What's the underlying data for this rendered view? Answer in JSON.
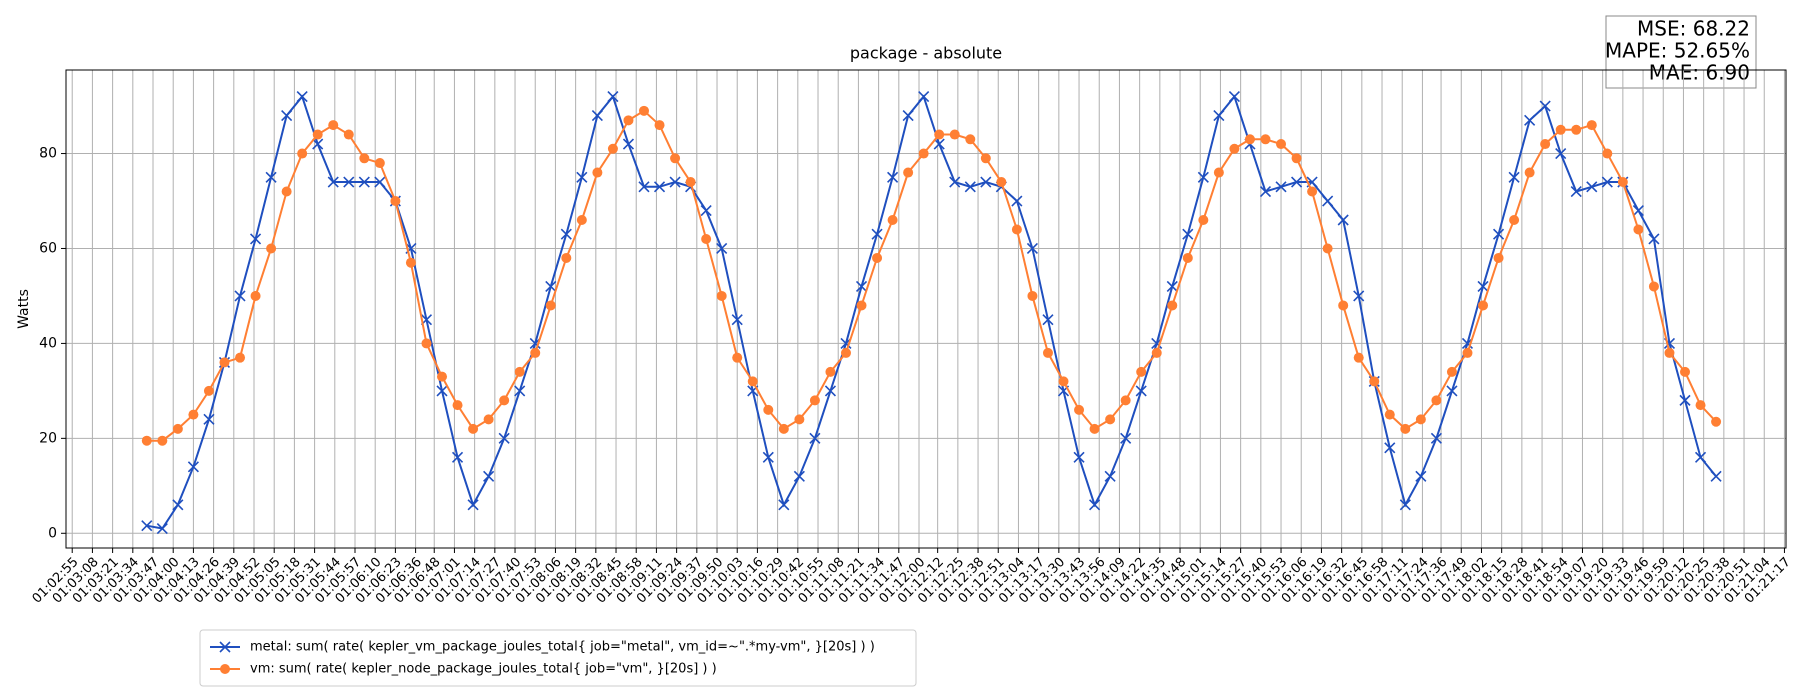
{
  "chart_data": {
    "type": "line",
    "title": "package - absolute",
    "ylabel": "Watts",
    "annotations": [
      "MSE: 68.22",
      "MAPE: 52.65%",
      "MAE: 6.90"
    ],
    "x": [
      "01:03:43",
      "01:03:53",
      "01:04:03",
      "01:04:13",
      "01:04:23",
      "01:04:33",
      "01:04:43",
      "01:04:53",
      "01:05:03",
      "01:05:13",
      "01:05:23",
      "01:05:33",
      "01:05:43",
      "01:05:53",
      "01:06:03",
      "01:06:13",
      "01:06:23",
      "01:06:33",
      "01:06:43",
      "01:06:53",
      "01:07:03",
      "01:07:13",
      "01:07:23",
      "01:07:33",
      "01:07:43",
      "01:07:53",
      "01:08:03",
      "01:08:13",
      "01:08:23",
      "01:08:33",
      "01:08:43",
      "01:08:53",
      "01:09:03",
      "01:09:13",
      "01:09:23",
      "01:09:33",
      "01:09:43",
      "01:09:53",
      "01:10:03",
      "01:10:13",
      "01:10:23",
      "01:10:33",
      "01:10:43",
      "01:10:53",
      "01:11:03",
      "01:11:13",
      "01:11:23",
      "01:11:33",
      "01:11:43",
      "01:11:53",
      "01:12:03",
      "01:12:13",
      "01:12:23",
      "01:12:33",
      "01:12:43",
      "01:12:53",
      "01:13:03",
      "01:13:13",
      "01:13:23",
      "01:13:33",
      "01:13:43",
      "01:13:53",
      "01:14:03",
      "01:14:13",
      "01:14:23",
      "01:14:33",
      "01:14:43",
      "01:14:53",
      "01:15:03",
      "01:15:13",
      "01:15:23",
      "01:15:33",
      "01:15:43",
      "01:15:53",
      "01:16:03",
      "01:16:13",
      "01:16:23",
      "01:16:33",
      "01:16:43",
      "01:16:53",
      "01:17:03",
      "01:17:13",
      "01:17:23",
      "01:17:33",
      "01:17:43",
      "01:17:53",
      "01:18:03",
      "01:18:13",
      "01:18:23",
      "01:18:33",
      "01:18:43",
      "01:18:53",
      "01:19:03",
      "01:19:13",
      "01:19:23",
      "01:19:33",
      "01:19:43",
      "01:19:53",
      "01:20:03",
      "01:20:13",
      "01:20:23",
      "01:20:33"
    ],
    "series": [
      {
        "name": "metal: sum( rate( kepler_vm_package_joules_total{ job=\"metal\", vm_id=~\".*my-vm\", }[20s] ) )",
        "color": "#1f4fbf",
        "marker": "x",
        "values": [
          1.6,
          1,
          6,
          14,
          24,
          36,
          50,
          62,
          75,
          88,
          92,
          82,
          74,
          74,
          74,
          74,
          70,
          60,
          45,
          30,
          16,
          6,
          12,
          20,
          30,
          40,
          52,
          63,
          75,
          88,
          92,
          82,
          73,
          73,
          74,
          73,
          68,
          60,
          45,
          30,
          16,
          6,
          12,
          20,
          30,
          40,
          52,
          63,
          75,
          88,
          92,
          82,
          74,
          73,
          74,
          73,
          70,
          60,
          45,
          30,
          16,
          6,
          12,
          20,
          30,
          40,
          52,
          63,
          75,
          88,
          92,
          82,
          72,
          73,
          74,
          74,
          70,
          66,
          50,
          32,
          18,
          6,
          12,
          20,
          30,
          40,
          52,
          63,
          75,
          87,
          90,
          80,
          72,
          73,
          74,
          74,
          68,
          62,
          40,
          28,
          16,
          12
        ]
      },
      {
        "name": "vm: sum( rate( kepler_node_package_joules_total{ job=\"vm\", }[20s] ) )",
        "color": "#ff7f33",
        "marker": "o",
        "values": [
          19.5,
          19.5,
          22,
          25,
          30,
          36,
          37,
          50,
          60,
          72,
          80,
          84,
          86,
          84,
          79,
          78,
          70,
          57,
          40,
          33,
          27,
          22,
          24,
          28,
          34,
          38,
          48,
          58,
          66,
          76,
          81,
          87,
          89,
          86,
          79,
          74,
          62,
          50,
          37,
          32,
          26,
          22,
          24,
          28,
          34,
          38,
          48,
          58,
          66,
          76,
          80,
          84,
          84,
          83,
          79,
          74,
          64,
          50,
          38,
          32,
          26,
          22,
          24,
          28,
          34,
          38,
          48,
          58,
          66,
          76,
          81,
          83,
          83,
          82,
          79,
          72,
          60,
          48,
          37,
          32,
          25,
          22,
          24,
          28,
          34,
          38,
          48,
          58,
          66,
          76,
          82,
          85,
          85,
          86,
          80,
          74,
          64,
          52,
          38,
          34,
          27,
          23.5
        ]
      }
    ],
    "xlim": [
      "01:02:51",
      "01:21:18"
    ],
    "xticks": [
      "01:02:55",
      "01:03:08",
      "01:03:21",
      "01:03:34",
      "01:03:47",
      "01:04:00",
      "01:04:13",
      "01:04:26",
      "01:04:39",
      "01:04:52",
      "01:05:05",
      "01:05:18",
      "01:05:31",
      "01:05:44",
      "01:05:57",
      "01:06:10",
      "01:06:23",
      "01:06:36",
      "01:06:48",
      "01:07:01",
      "01:07:14",
      "01:07:27",
      "01:07:40",
      "01:07:53",
      "01:08:06",
      "01:08:19",
      "01:08:32",
      "01:08:45",
      "01:08:58",
      "01:09:11",
      "01:09:24",
      "01:09:37",
      "01:09:50",
      "01:10:03",
      "01:10:16",
      "01:10:29",
      "01:10:42",
      "01:10:55",
      "01:11:08",
      "01:11:21",
      "01:11:34",
      "01:11:47",
      "01:12:00",
      "01:12:12",
      "01:12:25",
      "01:12:38",
      "01:12:51",
      "01:13:04",
      "01:13:17",
      "01:13:30",
      "01:13:43",
      "01:13:56",
      "01:14:09",
      "01:14:22",
      "01:14:35",
      "01:14:48",
      "01:15:01",
      "01:15:14",
      "01:15:27",
      "01:15:40",
      "01:15:53",
      "01:16:06",
      "01:16:19",
      "01:16:32",
      "01:16:45",
      "01:16:58",
      "01:17:11",
      "01:17:24",
      "01:17:36",
      "01:17:49",
      "01:18:02",
      "01:18:15",
      "01:18:28",
      "01:18:41",
      "01:18:54",
      "01:19:07",
      "01:19:20",
      "01:19:33",
      "01:19:46",
      "01:19:59",
      "01:20:12",
      "01:20:25",
      "01:20:38",
      "01:20:51",
      "01:21:04",
      "01:21:17"
    ],
    "ylim": [
      -3.1,
      97.6
    ],
    "yticks": [
      0,
      20,
      40,
      60,
      80
    ],
    "grid": true,
    "legend": "below"
  }
}
